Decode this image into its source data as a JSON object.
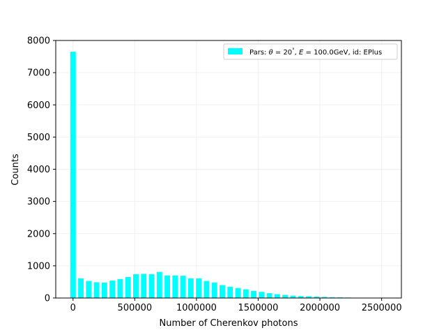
{
  "chart_data": {
    "type": "bar",
    "title": "",
    "xlabel": "Number of Cherenkov photons",
    "ylabel": "Counts",
    "xlim": [
      -140000,
      2660000
    ],
    "ylim": [
      0,
      8000
    ],
    "xticks": [
      0,
      500000,
      1000000,
      1500000,
      2000000,
      2500000
    ],
    "xtick_labels": [
      "0",
      "500000",
      "1000000",
      "1500000",
      "2000000",
      "2500000"
    ],
    "yticks": [
      0,
      1000,
      2000,
      3000,
      4000,
      5000,
      6000,
      7000,
      8000
    ],
    "ytick_labels": [
      "0",
      "1000",
      "2000",
      "3000",
      "4000",
      "5000",
      "6000",
      "7000",
      "8000"
    ],
    "grid": true,
    "legend_position": "top-right",
    "bin_width": 63636,
    "series": [
      {
        "name": "Pars: θ = 20°, E = 100.0GeV, id: EPlus",
        "color": "#00ffff",
        "x": [
          0,
          63636,
          127273,
          190909,
          254545,
          318182,
          381818,
          445455,
          509091,
          572727,
          636364,
          700000,
          763636,
          827273,
          890909,
          954545,
          1018182,
          1081818,
          1145455,
          1209091,
          1272727,
          1336364,
          1400000,
          1463636,
          1527273,
          1590909,
          1654545,
          1718182,
          1781818,
          1845455,
          1909091,
          1972727,
          2036364,
          2100000,
          2163636,
          2227273,
          2290909,
          2354545,
          2418182,
          2481818,
          2545455
        ],
        "values": [
          7650,
          610,
          530,
          490,
          480,
          540,
          590,
          650,
          740,
          750,
          740,
          810,
          700,
          700,
          690,
          610,
          610,
          530,
          480,
          400,
          350,
          310,
          270,
          220,
          190,
          150,
          120,
          95,
          75,
          60,
          55,
          45,
          35,
          25,
          20,
          15,
          10,
          8,
          5,
          5,
          3
        ]
      }
    ],
    "legend": {
      "prefix": "Pars: ",
      "theta_symbol": "θ",
      "theta_eq": " = 20",
      "degree": "°",
      "sep1": ", ",
      "energy_symbol": "E",
      "energy_eq": " = 100.0GeV",
      "suffix": ", id: EPlus"
    }
  }
}
